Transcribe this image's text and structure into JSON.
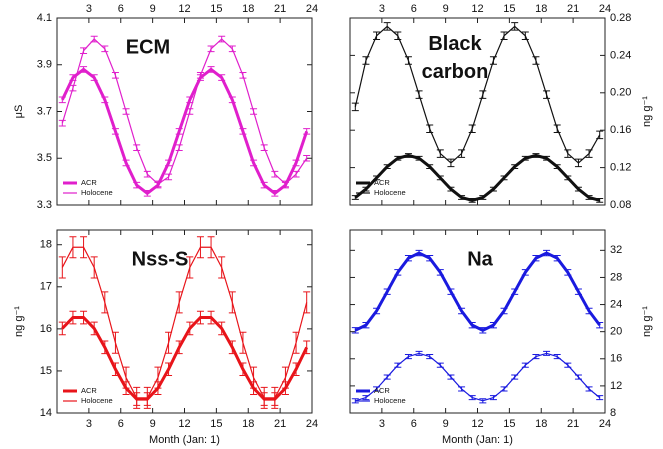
{
  "chart_data": [
    {
      "type": "line",
      "title": "ECM",
      "title_color": "#e01fcc",
      "ylabel": "μS",
      "yaxis": "left",
      "xaxis": "top",
      "x": [
        0.5,
        1.5,
        2.5,
        3.5,
        4.5,
        5.5,
        6.5,
        7.5,
        8.5,
        9.5,
        10.5,
        11.5,
        12.5,
        13.5,
        14.5,
        15.5,
        16.5,
        17.5,
        18.5,
        19.5,
        20.5,
        21.5,
        22.5,
        23.5
      ],
      "xlim": [
        0,
        24
      ],
      "xticks": [
        3,
        6,
        9,
        12,
        15,
        18,
        21,
        24
      ],
      "ylim": [
        3.3,
        4.1
      ],
      "yticks": [
        3.3,
        3.5,
        3.7,
        3.9,
        4.1
      ],
      "legend": "lower left",
      "series": [
        {
          "name": "ACR",
          "color": "#e01fcc",
          "width": 3,
          "error": 0.012,
          "values": [
            3.75,
            3.845,
            3.88,
            3.845,
            3.75,
            3.615,
            3.48,
            3.385,
            3.35,
            3.385,
            3.48,
            3.615,
            3.75,
            3.845,
            3.88,
            3.845,
            3.75,
            3.615,
            3.48,
            3.385,
            3.35,
            3.385,
            3.48,
            3.615
          ]
        },
        {
          "name": "Holocene",
          "color": "#e01fcc",
          "width": 1.2,
          "error": 0.012,
          "values": [
            3.65,
            3.8,
            3.96,
            4.01,
            3.968,
            3.855,
            3.7,
            3.545,
            3.432,
            3.39,
            3.42,
            3.545,
            3.7,
            3.855,
            3.968,
            4.01,
            3.968,
            3.855,
            3.7,
            3.545,
            3.432,
            3.39,
            3.432,
            3.5
          ]
        }
      ]
    },
    {
      "type": "line",
      "title": "Black carbon",
      "title_color": "#111111",
      "ylabel": "ng g⁻¹",
      "yaxis": "right",
      "xaxis": "top",
      "x": [
        0.5,
        1.5,
        2.5,
        3.5,
        4.5,
        5.5,
        6.5,
        7.5,
        8.5,
        9.5,
        10.5,
        11.5,
        12.5,
        13.5,
        14.5,
        15.5,
        16.5,
        17.5,
        18.5,
        19.5,
        20.5,
        21.5,
        22.5,
        23.5
      ],
      "xlim": [
        0,
        24
      ],
      "xticks": [
        3,
        6,
        9,
        12,
        15,
        18,
        21,
        24
      ],
      "ylim": [
        0.08,
        0.28
      ],
      "yticks": [
        0.08,
        0.12,
        0.16,
        {
          "value": 0.2,
          "label": "0.20"
        },
        0.24,
        0.28
      ],
      "legend": "lower left",
      "series": [
        {
          "name": "ACR",
          "color": "#111111",
          "width": 3,
          "error": 0.002,
          "values": [
            0.088,
            0.097,
            0.109,
            0.121,
            0.13,
            0.133,
            0.13,
            0.121,
            0.109,
            0.097,
            0.088,
            0.085,
            0.088,
            0.097,
            0.109,
            0.121,
            0.13,
            0.133,
            0.13,
            0.121,
            0.109,
            0.097,
            0.088,
            0.085
          ]
        },
        {
          "name": "Holocene",
          "color": "#111111",
          "width": 1.2,
          "error": 0.004,
          "values": [
            0.185,
            0.2345,
            0.261,
            0.271,
            0.261,
            0.2345,
            0.198,
            0.1615,
            0.135,
            0.125,
            0.135,
            0.1615,
            0.198,
            0.2345,
            0.261,
            0.271,
            0.261,
            0.2345,
            0.198,
            0.1615,
            0.135,
            0.125,
            0.135,
            0.155
          ]
        }
      ]
    },
    {
      "type": "line",
      "title": "Nss-S",
      "title_color": "#e8141a",
      "ylabel": "ng g⁻¹",
      "yaxis": "left",
      "xaxis": "bottom",
      "xlabel": "Month (Jan: 1)",
      "x": [
        0.5,
        1.5,
        2.5,
        3.5,
        4.5,
        5.5,
        6.5,
        7.5,
        8.5,
        9.5,
        10.5,
        11.5,
        12.5,
        13.5,
        14.5,
        15.5,
        16.5,
        17.5,
        18.5,
        19.5,
        20.5,
        21.5,
        22.5,
        23.5
      ],
      "xlim": [
        0,
        24
      ],
      "xticks": [
        3,
        6,
        9,
        12,
        15,
        18,
        21,
        24
      ],
      "ylim": [
        14,
        18.35
      ],
      "yticks": [
        14,
        15,
        16,
        17,
        18
      ],
      "legend": "lower left",
      "series": [
        {
          "name": "ACR",
          "color": "#e8141a",
          "width": 3,
          "error": 0.15,
          "values": [
            16.01,
            16.27,
            16.27,
            16.01,
            15.56,
            15.04,
            14.59,
            14.33,
            14.33,
            14.59,
            15.04,
            15.56,
            16.01,
            16.27,
            16.27,
            16.01,
            15.56,
            15.04,
            14.59,
            14.33,
            14.33,
            14.59,
            15.04,
            15.56
          ]
        },
        {
          "name": "Holocene",
          "color": "#e8141a",
          "width": 1.2,
          "error": 0.25,
          "values": [
            17.46,
            17.94,
            17.94,
            17.46,
            16.63,
            15.67,
            14.84,
            14.36,
            14.36,
            14.84,
            15.67,
            16.63,
            17.46,
            17.94,
            17.94,
            17.46,
            16.63,
            15.67,
            14.84,
            14.36,
            14.36,
            14.84,
            15.67,
            16.63
          ]
        }
      ]
    },
    {
      "type": "line",
      "title": "Na",
      "title_color": "#1a1adf",
      "ylabel": "ng g⁻¹",
      "yaxis": "right",
      "xaxis": "bottom",
      "xlabel": "Month (Jan: 1)",
      "x": [
        0.5,
        1.5,
        2.5,
        3.5,
        4.5,
        5.5,
        6.5,
        7.5,
        8.5,
        9.5,
        10.5,
        11.5,
        12.5,
        13.5,
        14.5,
        15.5,
        16.5,
        17.5,
        18.5,
        19.5,
        20.5,
        21.5,
        22.5,
        23.5
      ],
      "xlim": [
        0,
        24
      ],
      "xticks": [
        3,
        6,
        9,
        12,
        15,
        18,
        21,
        24
      ],
      "ylim": [
        8,
        35
      ],
      "yticks": [
        8,
        12,
        16,
        20,
        24,
        28,
        32
      ],
      "legend": "lower left",
      "series": [
        {
          "name": "ACR",
          "color": "#1a1adf",
          "width": 3,
          "error": 0.4,
          "values": [
            20.2,
            20.96,
            23.05,
            25.9,
            28.75,
            30.84,
            31.6,
            30.84,
            28.75,
            25.9,
            23.05,
            20.96,
            20.2,
            20.96,
            23.05,
            25.9,
            28.75,
            30.84,
            31.6,
            30.84,
            28.75,
            25.9,
            23.05,
            20.96
          ]
        },
        {
          "name": "Holocene",
          "color": "#1a1adf",
          "width": 1.2,
          "error": 0.3,
          "values": [
            9.8,
            10.27,
            11.55,
            13.3,
            15.05,
            16.33,
            16.8,
            16.33,
            15.05,
            13.3,
            11.55,
            10.27,
            9.8,
            10.27,
            11.55,
            13.3,
            15.05,
            16.33,
            16.8,
            16.33,
            15.05,
            13.3,
            11.55,
            10.27
          ]
        }
      ]
    }
  ]
}
